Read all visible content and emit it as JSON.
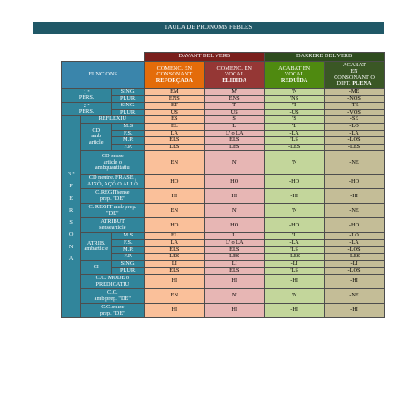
{
  "title": "TAULA DE  PRONOMS FEBLES",
  "groups": {
    "before": "DAVANT DEL VERB",
    "after": "DARRERE DEL VERB"
  },
  "headers": {
    "funcions": "FUNCIONS",
    "col1": "COMENC. EN\nCONSONANT",
    "col1b": "REFORÇADA",
    "col2": "COMENC. EN\nVOCAL",
    "col2b": "ELIDIDA",
    "col3": "ACABAT EN\nVOCAL",
    "col3b": "REDUÏDA",
    "col4": "ACABAT\nEN\nCONSONANT O\nDIFT.",
    "col4b": "PLENA"
  },
  "labels": {
    "p1": "1 ª\nPERS.",
    "p2": "2 ª\nPERS.",
    "p3": "3 ª\n\nP\n\nE\n\nR\n\nS\n\nO\n\nN\n\nA",
    "sing": "SING.",
    "plur": "PLUR.",
    "reflexiu": "REFLEXIU",
    "cd": "CD\namb\narticle",
    "ms": "M.S",
    "fs": "F.S.",
    "mp": "M.P.",
    "fp": "F.P.",
    "cdsense": "CD sense\narticle o\nambquantitatiu",
    "cdneutre": "CD neutre. FRASE ,\nAIXÒ, AÇÒ O ALLÒ",
    "cregit": "C.REGITsense\nprep. \"DE\"",
    "cregitamb": "C. REGIT amb prep.\n\"DE\"",
    "atribut": "ATRIBUT\nsenseartícle",
    "atribamb": "ATRIB.\nambarticle",
    "ci": "CI",
    "ccmode": "C.C. MODE o\nPREDICATIU",
    "ccamb": "C.C.\namb prep. \"DE\"",
    "ccsense": "C.C.sense\nprep. \"DE\""
  },
  "values": {
    "p1s": [
      "EM",
      "M'",
      "'N",
      "-ME"
    ],
    "p1p": [
      "ENS",
      "ENS",
      "'NS",
      "-NOS"
    ],
    "p2s": [
      "ET",
      "T'",
      "'T",
      "-TE"
    ],
    "p2p": [
      "US",
      "US",
      "-US",
      "-VOS"
    ],
    "refl": [
      "ES",
      "S'",
      "'S",
      "-SE"
    ],
    "cdms": [
      "EL",
      "L'",
      "'L",
      "-LO"
    ],
    "cdfs": [
      "LA",
      "L' o LA",
      "-LA",
      "-LA"
    ],
    "cdmp": [
      "ELS",
      "ELS",
      "'LS",
      "-LOS"
    ],
    "cdfp": [
      "LES",
      "LES",
      "-LES",
      "-LES"
    ],
    "cdsense": [
      "EN",
      "N'",
      "'N",
      "-NE"
    ],
    "cdneutre": [
      "HO",
      "HO",
      "-HO",
      "-HO"
    ],
    "cregit": [
      "HI",
      "HI",
      "-HI",
      "-HI"
    ],
    "cregitamb": [
      "EN",
      "N'",
      "'N",
      "-NE"
    ],
    "atribut": [
      "HO",
      "HO",
      "-HO",
      "-HO"
    ],
    "atms": [
      "EL",
      "L'",
      "'L",
      "-LO"
    ],
    "atfs": [
      "LA",
      "L' o LA",
      "-LA",
      "-LA"
    ],
    "atmp": [
      "ELS",
      "ELS",
      "'LS",
      "-LOS"
    ],
    "atfp": [
      "LES",
      "LES",
      "-LES",
      "-LES"
    ],
    "cis": [
      "LI",
      "LI",
      "-LI",
      "-LI"
    ],
    "cip": [
      "ELS",
      "ELS",
      "'LS",
      "-LOS"
    ],
    "ccmode": [
      "HI",
      "HI",
      "-HI",
      "-HI"
    ],
    "ccamb": [
      "EN",
      "N'",
      "'N",
      "-NE"
    ],
    "ccsense": [
      "HI",
      "HI",
      "-HI",
      "-HI"
    ]
  }
}
